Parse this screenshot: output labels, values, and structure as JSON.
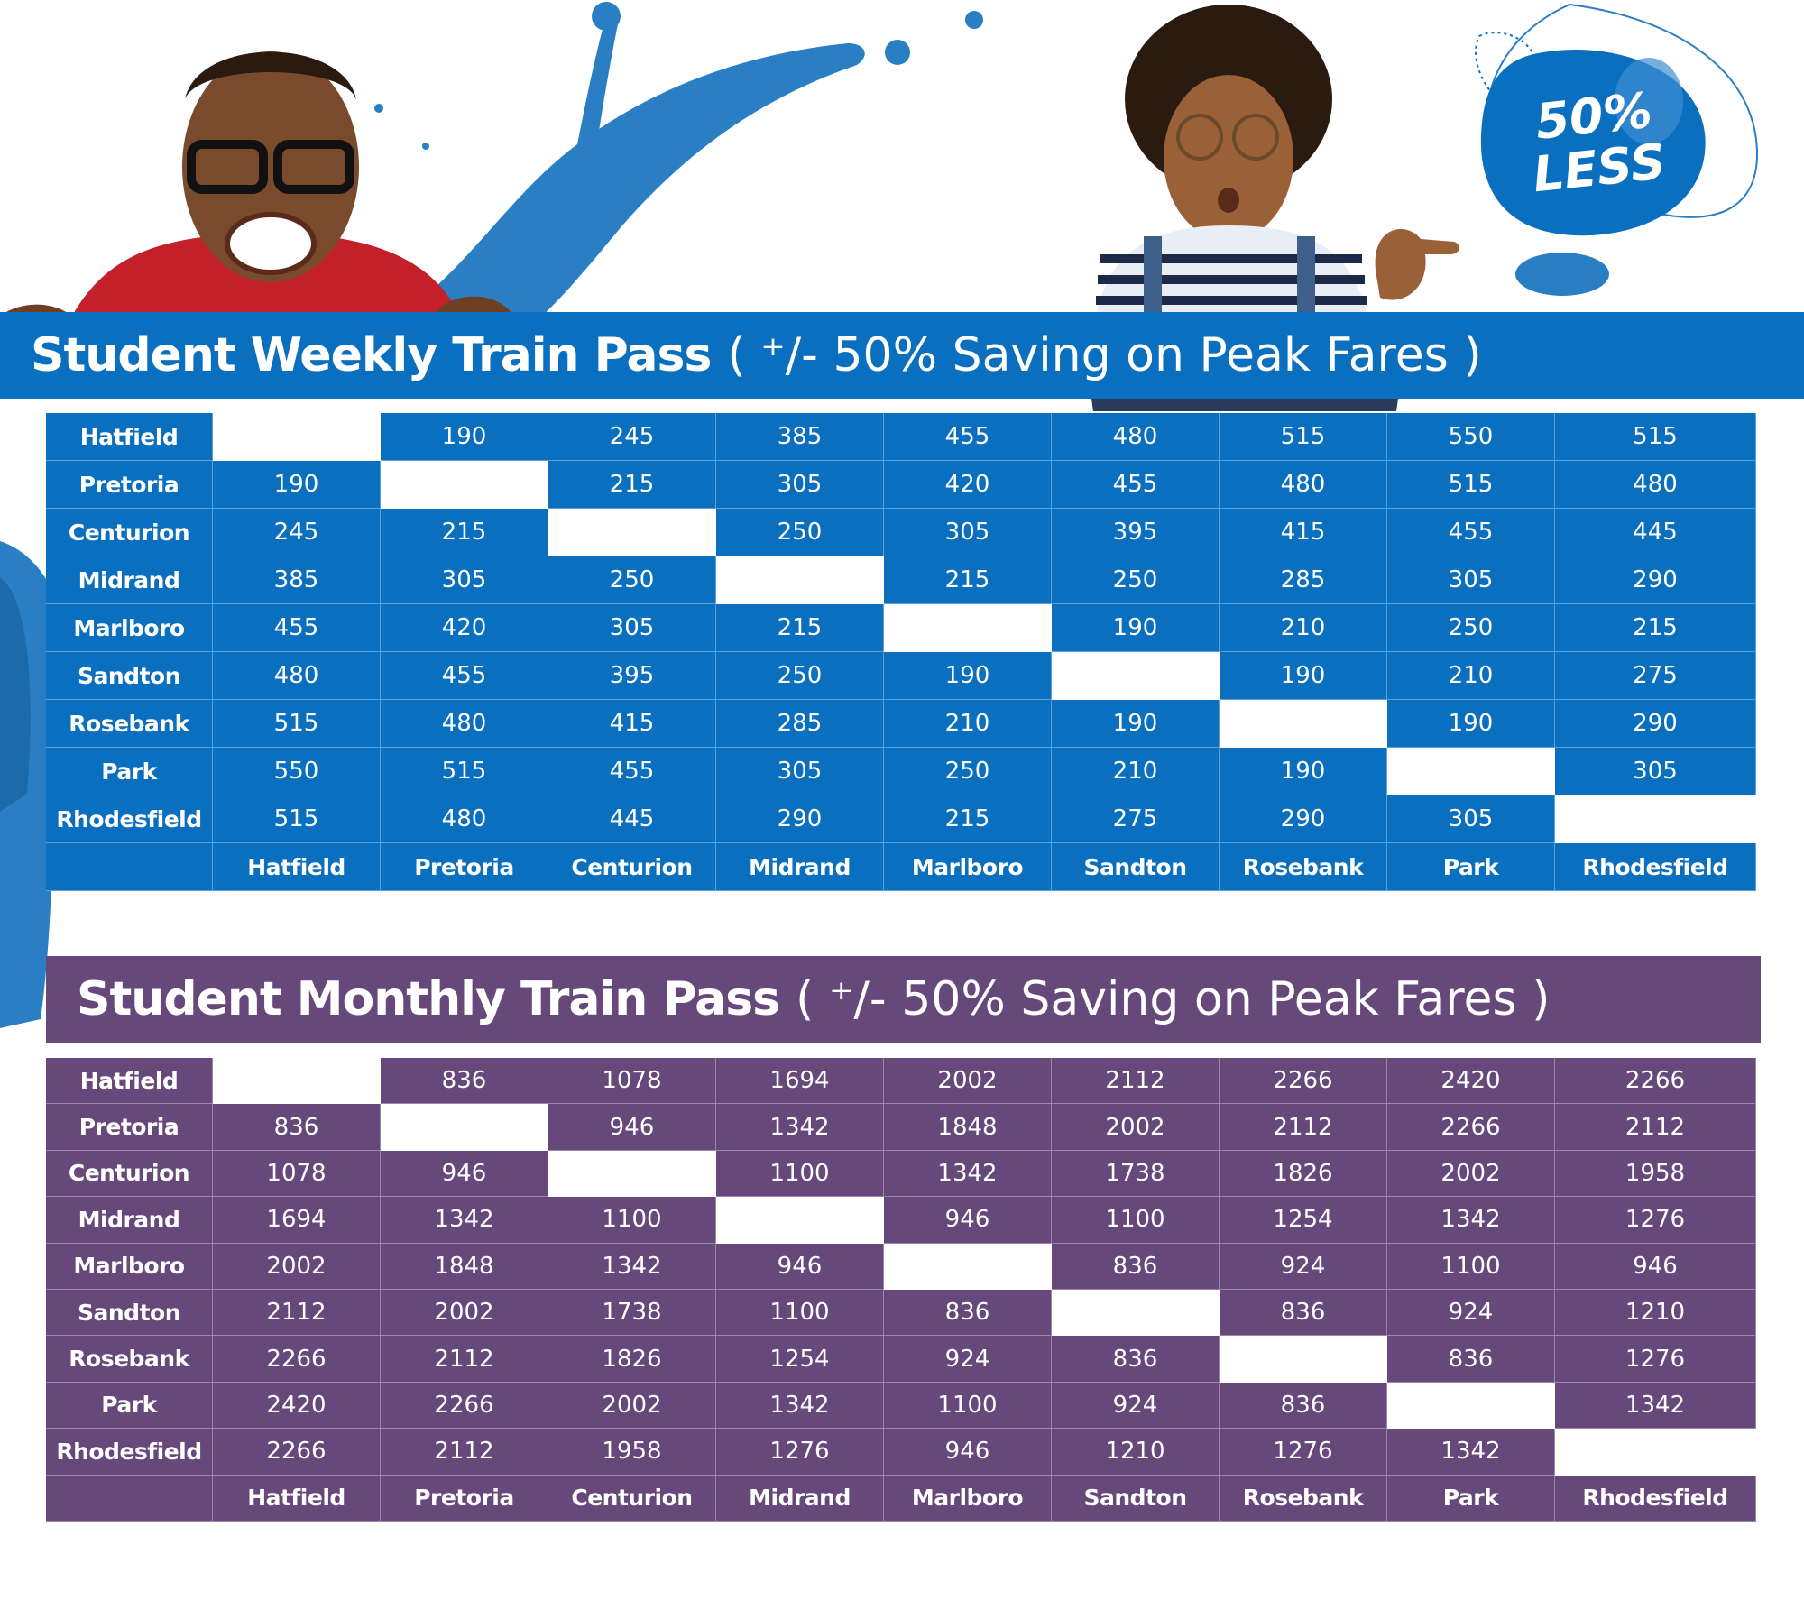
{
  "weekly": {
    "title_bold": "Student Weekly Train Pass",
    "title_light": "( ⁺/- 50% Saving on Peak Fares )",
    "stations": [
      "Hatfield",
      "Pretoria",
      "Centurion",
      "Midrand",
      "Marlboro",
      "Sandton",
      "Rosebank",
      "Park",
      "Rhodesfield"
    ],
    "rows": [
      [
        "",
        "190",
        "245",
        "385",
        "455",
        "480",
        "515",
        "550",
        "515"
      ],
      [
        "190",
        "",
        "215",
        "305",
        "420",
        "455",
        "480",
        "515",
        "480"
      ],
      [
        "245",
        "215",
        "",
        "250",
        "305",
        "395",
        "415",
        "455",
        "445"
      ],
      [
        "385",
        "305",
        "250",
        "",
        "215",
        "250",
        "285",
        "305",
        "290"
      ],
      [
        "455",
        "420",
        "305",
        "215",
        "",
        "190",
        "210",
        "250",
        "215"
      ],
      [
        "480",
        "455",
        "395",
        "250",
        "190",
        "",
        "190",
        "210",
        "275"
      ],
      [
        "515",
        "480",
        "415",
        "285",
        "210",
        "190",
        "",
        "190",
        "290"
      ],
      [
        "550",
        "515",
        "455",
        "305",
        "250",
        "210",
        "190",
        "",
        "305"
      ],
      [
        "515",
        "480",
        "445",
        "290",
        "215",
        "275",
        "290",
        "305",
        ""
      ]
    ]
  },
  "monthly": {
    "title_bold": "Student Monthly Train Pass",
    "title_light": "( ⁺/- 50% Saving on Peak Fares )",
    "stations": [
      "Hatfield",
      "Pretoria",
      "Centurion",
      "Midrand",
      "Marlboro",
      "Sandton",
      "Rosebank",
      "Park",
      "Rhodesfield"
    ],
    "rows": [
      [
        "",
        "836",
        "1078",
        "1694",
        "2002",
        "2112",
        "2266",
        "2420",
        "2266"
      ],
      [
        "836",
        "",
        "946",
        "1342",
        "1848",
        "2002",
        "2112",
        "2266",
        "2112"
      ],
      [
        "1078",
        "946",
        "",
        "1100",
        "1342",
        "1738",
        "1826",
        "2002",
        "1958"
      ],
      [
        "1694",
        "1342",
        "1100",
        "",
        "946",
        "1100",
        "1254",
        "1342",
        "1276"
      ],
      [
        "2002",
        "1848",
        "1342",
        "946",
        "",
        "836",
        "924",
        "1100",
        "946"
      ],
      [
        "2112",
        "2002",
        "1738",
        "1100",
        "836",
        "",
        "836",
        "924",
        "1210"
      ],
      [
        "2266",
        "2112",
        "1826",
        "1254",
        "924",
        "836",
        "",
        "836",
        "1276"
      ],
      [
        "2420",
        "2266",
        "2002",
        "1342",
        "1100",
        "924",
        "836",
        "",
        "1342"
      ],
      [
        "2266",
        "2112",
        "1958",
        "1276",
        "946",
        "1210",
        "1276",
        "1342",
        ""
      ]
    ]
  },
  "badge": {
    "line1": "50%",
    "line2": "LESS"
  },
  "colors": {
    "weekly_blue": "#0a6fbe",
    "monthly_purple": "#66497a",
    "splash_blue": "#2a7fc4"
  }
}
